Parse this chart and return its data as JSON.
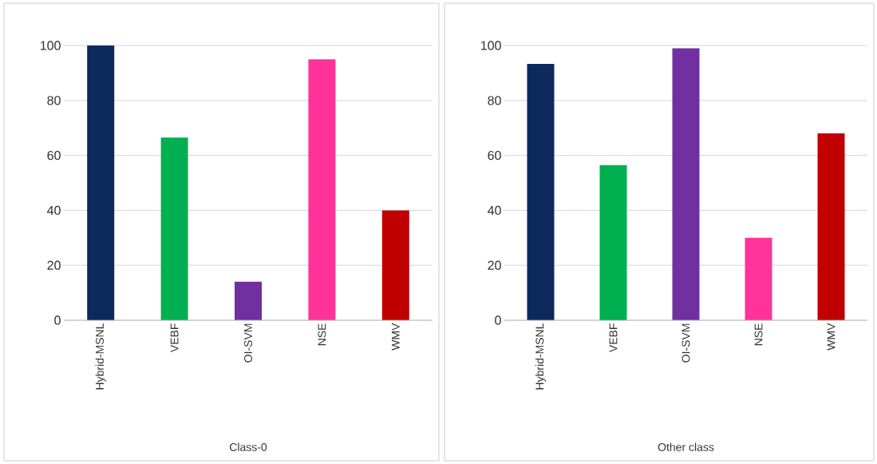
{
  "chart_data": [
    {
      "type": "bar",
      "xlabel": "Class-0",
      "categories": [
        "Hybrid-MSNL",
        "VEBF",
        "OI-SVM",
        "NSE",
        "WMV"
      ],
      "values": [
        100,
        66.5,
        14,
        95,
        40
      ],
      "colors": [
        "#0d2a5c",
        "#00b050",
        "#7030a0",
        "#ff3399",
        "#c00000"
      ],
      "ylim": [
        0,
        100
      ],
      "yticks": [
        0,
        20,
        40,
        60,
        80,
        100
      ],
      "grid": "y"
    },
    {
      "type": "bar",
      "xlabel": "Other class",
      "categories": [
        "Hybrid-MSNL",
        "VEBF",
        "OI-SVM",
        "NSE",
        "WMV"
      ],
      "values": [
        93.3,
        56.5,
        99,
        30,
        68
      ],
      "colors": [
        "#0d2a5c",
        "#00b050",
        "#7030a0",
        "#ff3399",
        "#c00000"
      ],
      "ylim": [
        0,
        100
      ],
      "yticks": [
        0,
        20,
        40,
        60,
        80,
        100
      ],
      "grid": "y"
    }
  ]
}
